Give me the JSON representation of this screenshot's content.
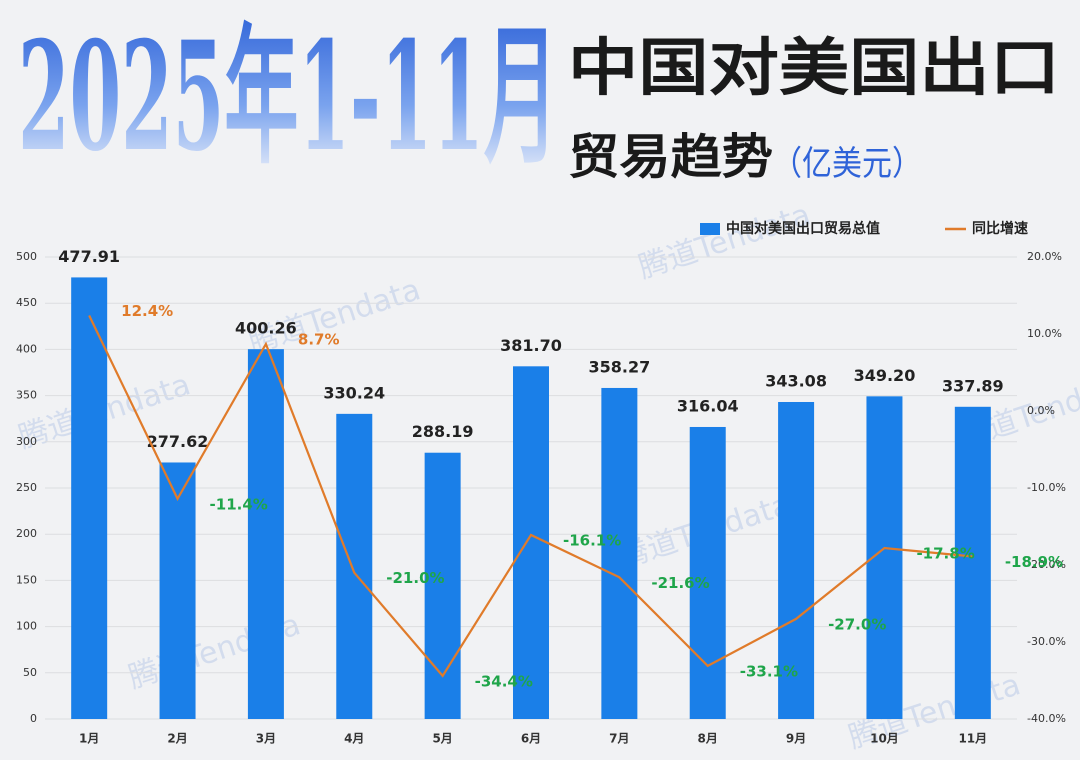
{
  "chart_data": {
    "type": "bar",
    "title": "2025年1-11月",
    "subtitle": [
      "中国对美国出口",
      "贸易趋势"
    ],
    "unit": "（亿美元）",
    "watermark": "腾道Tendata",
    "categories": [
      "1月",
      "2月",
      "3月",
      "4月",
      "5月",
      "6月",
      "7月",
      "8月",
      "9月",
      "10月",
      "11月"
    ],
    "series": [
      {
        "name": "中国对美国出口贸易总值",
        "color": "#1a7fe8",
        "values": [
          477.91,
          277.62,
          400.26,
          330.24,
          288.19,
          381.7,
          358.27,
          316.04,
          343.08,
          349.2,
          337.89
        ],
        "value_labels": [
          "477.91",
          "277.62",
          "400.26",
          "330.24",
          "288.19",
          "381.70",
          "358.27",
          "316.04",
          "343.08",
          "349.20",
          "337.89"
        ]
      },
      {
        "name": "同比增速",
        "color": "#e07b2a",
        "type": "line",
        "axis": "y2",
        "values": [
          12.4,
          -11.4,
          8.7,
          -21.0,
          -34.4,
          -16.1,
          -21.6,
          -33.1,
          -27.0,
          -17.8,
          -18.9
        ],
        "value_labels": [
          "12.4%",
          "-11.4%",
          "8.7%",
          "-21.0%",
          "-34.4%",
          "-16.1%",
          "-21.6%",
          "-33.1%",
          "-27.0%",
          "-17.8%",
          "-18.9%"
        ]
      }
    ],
    "positive_label_color": "#e07b2a",
    "negative_label_color": "#1fa54a",
    "ylim": [
      0,
      500
    ],
    "yticks": [
      0,
      50,
      100,
      150,
      200,
      250,
      300,
      350,
      400,
      450,
      500
    ],
    "y2lim": [
      -40,
      20
    ],
    "y2ticks": [
      {
        "value": -40,
        "label": "-40.0%"
      },
      {
        "value": -30,
        "label": "-30.0%"
      },
      {
        "value": -20,
        "label": "-20.0%"
      },
      {
        "value": -10,
        "label": "-10.0%"
      },
      {
        "value": 0,
        "label": "0.0%"
      },
      {
        "value": 10,
        "label": "10.0%"
      },
      {
        "value": 20,
        "label": "20.0%"
      }
    ],
    "grid": true,
    "legend": "top-right"
  }
}
